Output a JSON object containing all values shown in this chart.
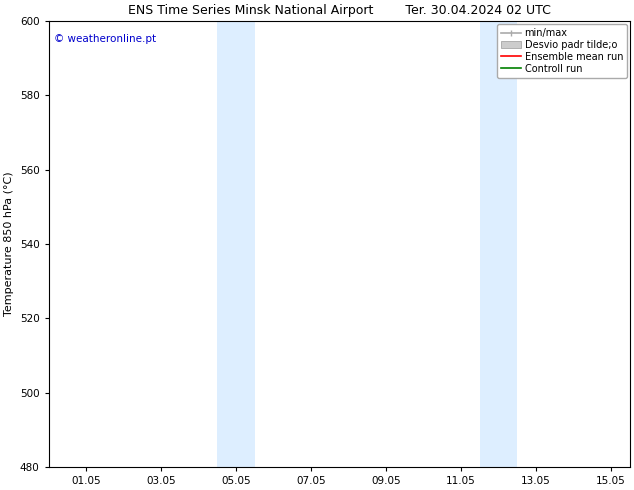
{
  "title_left": "ENS Time Series Minsk National Airport",
  "title_right": "Ter. 30.04.2024 02 UTC",
  "ylabel": "Temperature 850 hPa (°C)",
  "xlim": [
    0.0,
    15.5
  ],
  "ylim": [
    480,
    600
  ],
  "yticks": [
    480,
    500,
    520,
    540,
    560,
    580,
    600
  ],
  "xtick_labels": [
    "01.05",
    "03.05",
    "05.05",
    "07.05",
    "09.05",
    "11.05",
    "13.05",
    "15.05"
  ],
  "xtick_positions": [
    1,
    3,
    5,
    7,
    9,
    11,
    13,
    15
  ],
  "shaded_bands": [
    {
      "x_start": 4.5,
      "x_end": 5.5,
      "color": "#ddeeff"
    },
    {
      "x_start": 11.5,
      "x_end": 12.5,
      "color": "#ddeeff"
    }
  ],
  "watermark_text": "© weatheronline.pt",
  "watermark_color": "#0000cc",
  "watermark_fontsize": 7.5,
  "bg_color": "#ffffff",
  "plot_bg_color": "#ffffff",
  "title_fontsize": 9,
  "tick_fontsize": 7.5,
  "ylabel_fontsize": 8,
  "legend_fontsize": 7
}
